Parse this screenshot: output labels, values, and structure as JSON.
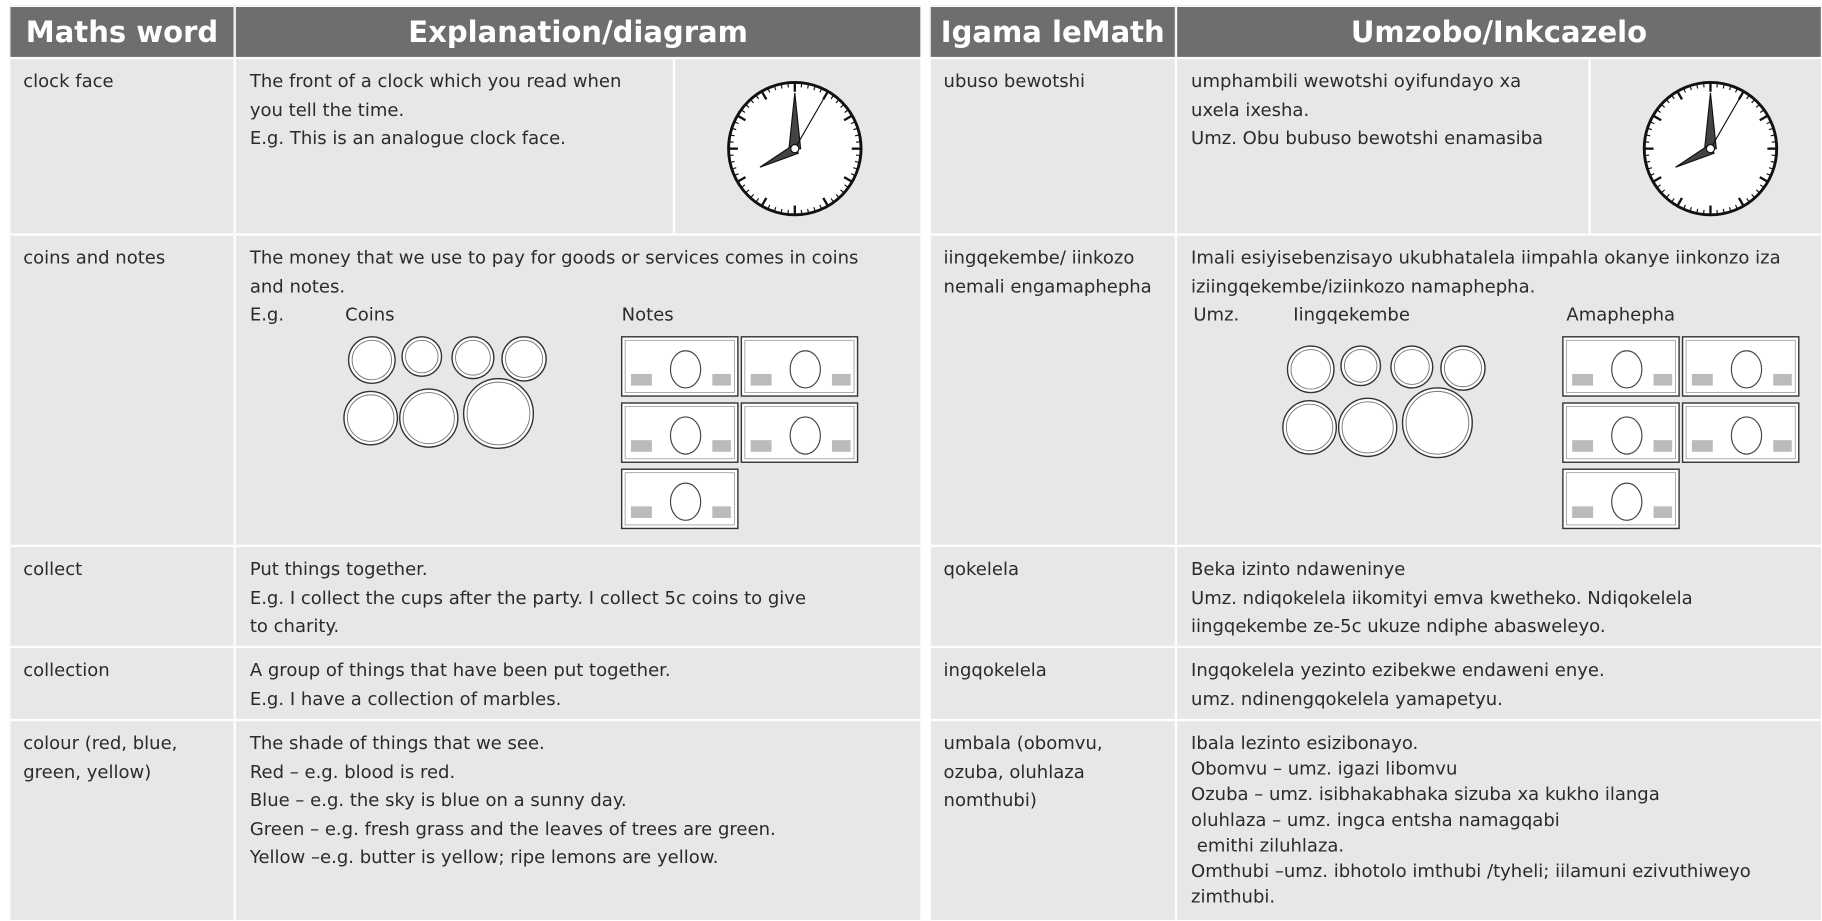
{
  "left": {
    "headers": [
      "Maths word",
      "Explanation/diagram"
    ],
    "rows": [
      {
        "word": [
          "clock face"
        ],
        "text": [
          "The front of a clock which you read when",
          "you tell the time.",
          "E.g. This is an analogue clock face."
        ]
      },
      {
        "word": [
          "coins and notes"
        ],
        "text": [
          "The money that we use to pay for goods or services comes in coins",
          "and notes."
        ],
        "example": {
          "lead": "E.g.",
          "coins": "Coins",
          "notes": "Notes"
        }
      },
      {
        "word": [
          "collect"
        ],
        "text": [
          "Put things together.",
          "E.g. I collect the cups after the party. I collect 5c coins to give",
          "to charity."
        ]
      },
      {
        "word": [
          "collection"
        ],
        "text": [
          "A group of things that have been put together.",
          "E.g. I have a collection of marbles."
        ]
      },
      {
        "word": [
          "colour (red, blue,",
          "green, yellow)"
        ],
        "text": [
          "The shade of things that we see.",
          "Red – e.g. blood is red.",
          "Blue – e.g. the sky is blue on a sunny day.",
          "Green – e.g. fresh grass and the leaves of trees are green.",
          "Yellow –e.g. butter is yellow; ripe lemons are yellow."
        ]
      }
    ]
  },
  "right": {
    "headers": [
      "Igama leMath",
      "Umzobo/Inkcazelo"
    ],
    "rows": [
      {
        "word": [
          "ubuso bewotshi"
        ],
        "text": [
          "umphambili wewotshi oyifundayo xa",
          "uxela ixesha.",
          "Umz. Obu bubuso bewotshi enamasiba"
        ]
      },
      {
        "word": [
          "iingqekembe/ iinkozo",
          "nemali engamaphepha"
        ],
        "text": [
          "Imali esiyisebenzisayo ukubhatalela iimpahla okanye iinkonzo iza",
          "iziingqekembe/iziinkozo namaphepha."
        ],
        "example": {
          "lead": "Umz.",
          "coins": "Iingqekembe",
          "notes": "Amaphepha"
        }
      },
      {
        "word": [
          "qokelela"
        ],
        "text": [
          "Beka izinto ndaweninye",
          "Umz. ndiqokelela iikomityi emva kwetheko. Ndiqokelela",
          "iingqekembe ze-5c ukuze ndiphe abasweleyo."
        ]
      },
      {
        "word": [
          "ingqokelela"
        ],
        "text": [
          "Ingqokelela yezinto ezibekwe endaweni enye.",
          "umz. ndinengqokelela yamapetyu."
        ]
      },
      {
        "word": [
          "umbala (obomvu,",
          "ozuba, oluhlaza",
          "nomthubi)"
        ],
        "text": [
          "Ibala lezinto esizibonayo.",
          "Obomvu – umz. igazi libomvu",
          "Ozuba – umz. isibhakabhaka sizuba xa kukho ilanga",
          "oluhlaza – umz. ingca entsha namagqabi",
          " emithi ziluhlaza.",
          "Omthubi –umz. ibhotolo imthubi /tyheli; iilamuni ezivuthiweyo",
          "zimthubi."
        ]
      }
    ]
  }
}
